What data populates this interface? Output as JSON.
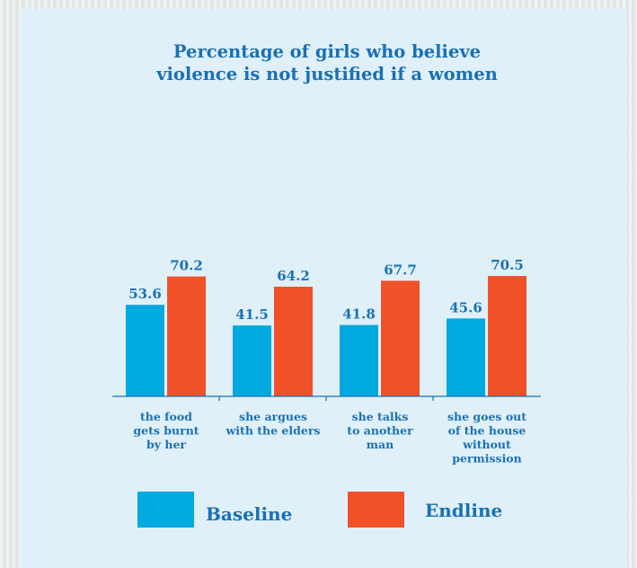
{
  "chart_data": {
    "type": "bar",
    "title": "Percentage of girls who believe violence is not justified if a women",
    "title_lines": [
      "Percentage of girls who believe",
      "violence is not justified if a women"
    ],
    "categories": [
      "the food gets burnt by her",
      "she argues with the elders",
      "she talks to another man",
      "she goes out of the house without permission"
    ],
    "category_lines": [
      [
        "the food",
        "gets burnt",
        "by her"
      ],
      [
        "she argues",
        "with the elders"
      ],
      [
        "she talks",
        "to another",
        "man"
      ],
      [
        "she goes out",
        "of the house",
        "without",
        "permission"
      ]
    ],
    "series": [
      {
        "name": "Baseline",
        "values": [
          53.6,
          41.5,
          41.8,
          45.6
        ],
        "color": "#00a9e0"
      },
      {
        "name": "Endline",
        "values": [
          70.2,
          64.2,
          67.7,
          70.5
        ],
        "color": "#f15129"
      }
    ],
    "value_labels": [
      [
        "53.6",
        "41.5",
        "41.8",
        "45.6"
      ],
      [
        "70.2",
        "64.2",
        "67.7",
        "70.5"
      ]
    ],
    "ylim": [
      0,
      100
    ],
    "grid": false,
    "legend": "bottom",
    "xlabel": "",
    "ylabel": ""
  },
  "colors": {
    "panel_background": "#dff0f9",
    "text": "#1a70b4",
    "axis": "#1a70b4"
  }
}
